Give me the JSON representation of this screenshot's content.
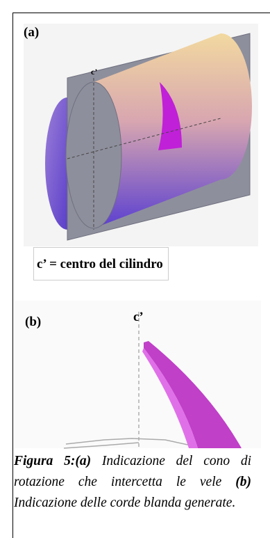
{
  "panel_a": {
    "label": "(a)",
    "point_label": "c’",
    "legend": "c’ = centro del cilindro"
  },
  "panel_b": {
    "label": "(b)",
    "point_label": "c’"
  },
  "caption": {
    "figure": "Figura 5:(a)",
    "text_a": "Indicazione del cono di rotazione che intercetta le vele",
    "part_b": "(b)",
    "text_b": "Indicazione delle corde blanda generate."
  }
}
